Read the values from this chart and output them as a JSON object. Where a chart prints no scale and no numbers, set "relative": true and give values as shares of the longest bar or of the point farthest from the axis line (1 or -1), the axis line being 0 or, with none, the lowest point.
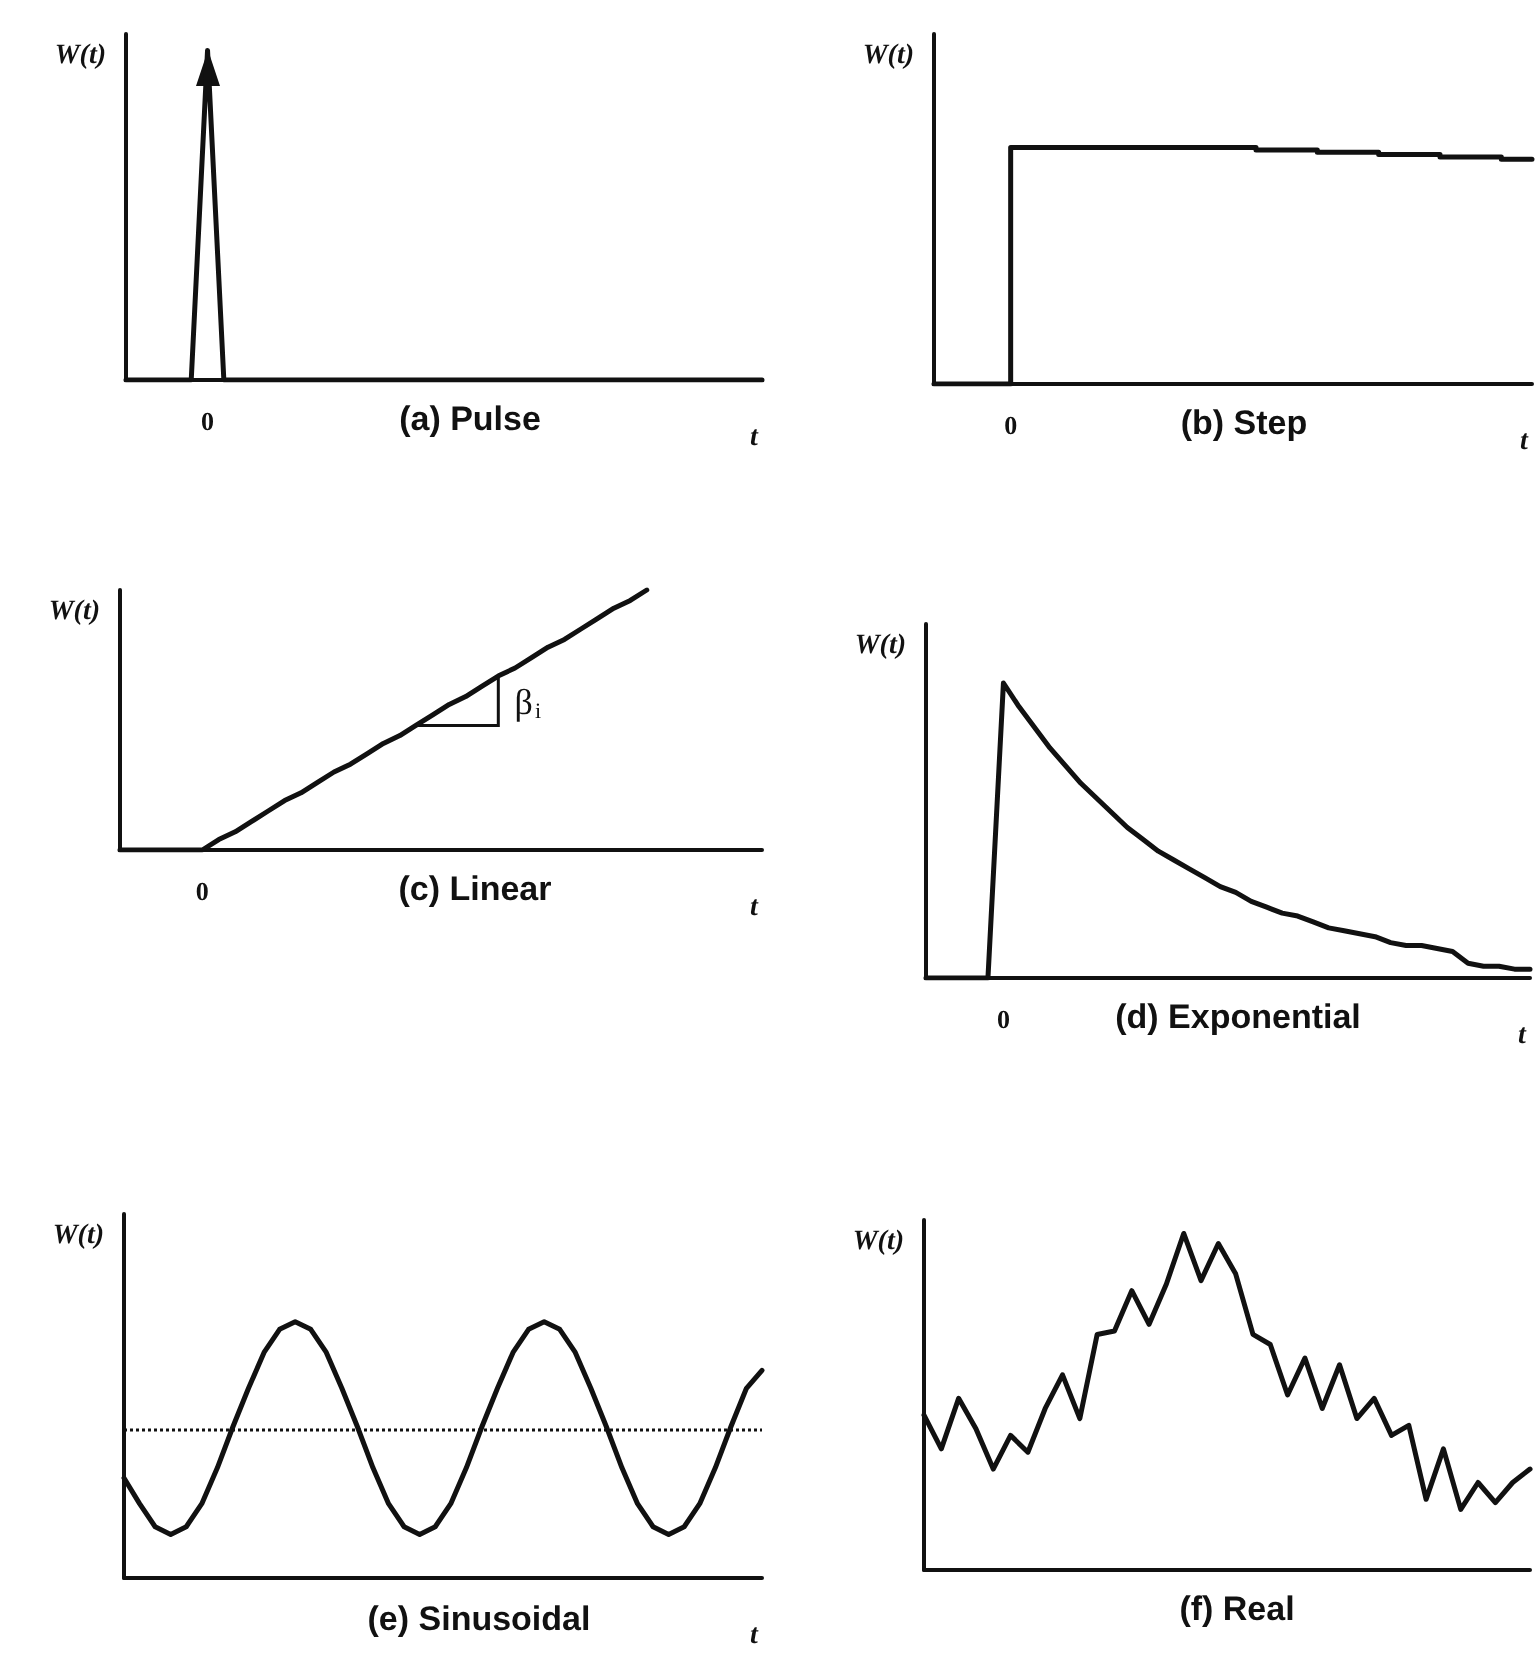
{
  "chart_data": [
    {
      "type": "line",
      "title": "(a) Pulse",
      "xlabel": "t",
      "ylabel": "W(t)",
      "relative": true,
      "annotations": [
        "0"
      ],
      "categories": [
        null,
        null,
        null,
        null,
        null,
        null,
        null,
        null,
        null,
        null,
        null,
        null,
        null,
        null,
        null,
        null,
        null,
        null,
        null,
        null,
        null,
        null,
        null,
        null,
        null,
        null,
        null,
        null,
        null,
        null,
        null,
        null,
        null,
        null,
        null,
        null,
        null,
        null,
        null,
        null
      ],
      "values": [
        0,
        0,
        0,
        0,
        0,
        1,
        0,
        0,
        0,
        0,
        0,
        0,
        0,
        0,
        0,
        0,
        0,
        0,
        0,
        0,
        0,
        0,
        0,
        0,
        0,
        0,
        0,
        0,
        0,
        0,
        0,
        0,
        0,
        0,
        0,
        0,
        0,
        0,
        0,
        0
      ],
      "color": "#111111"
    },
    {
      "type": "step",
      "title": "(b) Step",
      "xlabel": "t",
      "ylabel": "W(t)",
      "relative": true,
      "annotations": [
        "0"
      ],
      "categories": [
        null,
        null,
        null,
        null,
        null,
        null,
        null,
        null,
        null,
        null,
        null,
        null,
        null,
        null,
        null,
        null,
        null,
        null,
        null,
        null,
        null,
        null,
        null,
        null,
        null,
        null,
        null,
        null,
        null,
        null,
        null,
        null,
        null,
        null,
        null,
        null,
        null,
        null,
        null,
        null
      ],
      "values": [
        0,
        0,
        0,
        0,
        0,
        1,
        1,
        1,
        1,
        1,
        1,
        1,
        1,
        1,
        1,
        1,
        1,
        1,
        1,
        1,
        1,
        0.99,
        0.99,
        0.99,
        0.99,
        0.98,
        0.98,
        0.98,
        0.98,
        0.97,
        0.97,
        0.97,
        0.97,
        0.96,
        0.96,
        0.96,
        0.96,
        0.95,
        0.95,
        0.95
      ],
      "color": "#111111"
    },
    {
      "type": "line",
      "title": "(c) Linear",
      "xlabel": "t",
      "ylabel": "W(t)",
      "relative": true,
      "annotations": [
        "0",
        "β$_{i}$"
      ],
      "categories": [
        null,
        null,
        null,
        null,
        null,
        null,
        null,
        null,
        null,
        null,
        null,
        null,
        null,
        null,
        null,
        null,
        null,
        null,
        null,
        null,
        null,
        null,
        null,
        null,
        null,
        null,
        null,
        null,
        null,
        null,
        null,
        null,
        null,
        null,
        null,
        null,
        null,
        null,
        null,
        null
      ],
      "values": [
        0,
        0,
        0,
        0,
        0,
        0,
        0.04,
        0.07,
        0.11,
        0.15,
        0.19,
        0.22,
        0.26,
        0.3,
        0.33,
        0.37,
        0.41,
        0.44,
        0.48,
        0.52,
        0.56,
        0.59,
        0.63,
        0.67,
        0.7,
        0.74,
        0.78,
        0.81,
        0.85,
        0.89,
        0.93,
        0.96,
        1,
        null,
        null,
        null,
        null,
        null,
        null,
        null
      ],
      "color": "#111111"
    },
    {
      "type": "line",
      "title": "(d) Exponential",
      "xlabel": "t",
      "ylabel": "W(t)",
      "relative": true,
      "annotations": [
        "0"
      ],
      "categories": [
        null,
        null,
        null,
        null,
        null,
        null,
        null,
        null,
        null,
        null,
        null,
        null,
        null,
        null,
        null,
        null,
        null,
        null,
        null,
        null,
        null,
        null,
        null,
        null,
        null,
        null,
        null,
        null,
        null,
        null,
        null,
        null,
        null,
        null,
        null,
        null,
        null,
        null,
        null,
        null
      ],
      "values": [
        0,
        0,
        0,
        0,
        0,
        1,
        0.92,
        0.85,
        0.78,
        0.72,
        0.66,
        0.61,
        0.56,
        0.51,
        0.47,
        0.43,
        0.4,
        0.37,
        0.34,
        0.31,
        0.29,
        0.26,
        0.24,
        0.22,
        0.21,
        0.19,
        0.17,
        0.16,
        0.15,
        0.14,
        0.12,
        0.11,
        0.11,
        0.1,
        0.09,
        0.05,
        0.04,
        0.04,
        0.03,
        0.03
      ],
      "color": "#111111"
    },
    {
      "type": "line",
      "title": "(e) Sinusoidal",
      "xlabel": "t",
      "ylabel": "W(t)",
      "relative": true,
      "categories": [
        null,
        null,
        null,
        null,
        null,
        null,
        null,
        null,
        null,
        null,
        null,
        null,
        null,
        null,
        null,
        null,
        null,
        null,
        null,
        null,
        null,
        null,
        null,
        null,
        null,
        null,
        null,
        null,
        null,
        null,
        null,
        null,
        null,
        null,
        null,
        null,
        null,
        null,
        null,
        null,
        null,
        null
      ],
      "values": [
        0.39,
        0.29,
        0.2,
        0.17,
        0.2,
        0.29,
        0.43,
        0.59,
        0.74,
        0.88,
        0.97,
        1,
        0.97,
        0.88,
        0.74,
        0.59,
        0.43,
        0.29,
        0.2,
        0.17,
        0.2,
        0.29,
        0.43,
        0.59,
        0.74,
        0.88,
        0.97,
        1,
        0.97,
        0.88,
        0.74,
        0.59,
        0.43,
        0.29,
        0.2,
        0.17,
        0.2,
        0.29,
        0.43,
        0.59,
        0.74,
        0.81
      ],
      "color": "#111111",
      "ref_lines": [
        {
          "axis": "y",
          "value": 0.58,
          "line_style": "dotted",
          "color": "#111111"
        }
      ]
    },
    {
      "type": "line",
      "title": "(f) Real",
      "ylabel": "W(t)",
      "relative": true,
      "categories": [
        null,
        null,
        null,
        null,
        null,
        null,
        null,
        null,
        null,
        null,
        null,
        null,
        null,
        null,
        null,
        null,
        null,
        null,
        null,
        null,
        null,
        null,
        null,
        null,
        null,
        null,
        null,
        null,
        null,
        null,
        null,
        null,
        null,
        null,
        null,
        null
      ],
      "values": [
        0.46,
        0.36,
        0.51,
        0.42,
        0.3,
        0.4,
        0.35,
        0.48,
        0.58,
        0.45,
        0.7,
        0.71,
        0.83,
        0.73,
        0.85,
        1,
        0.86,
        0.97,
        0.88,
        0.7,
        0.67,
        0.52,
        0.63,
        0.48,
        0.61,
        0.45,
        0.51,
        0.4,
        0.43,
        0.21,
        0.36,
        0.18,
        0.26,
        0.2,
        0.26,
        0.3
      ],
      "color": "#111111"
    }
  ]
}
